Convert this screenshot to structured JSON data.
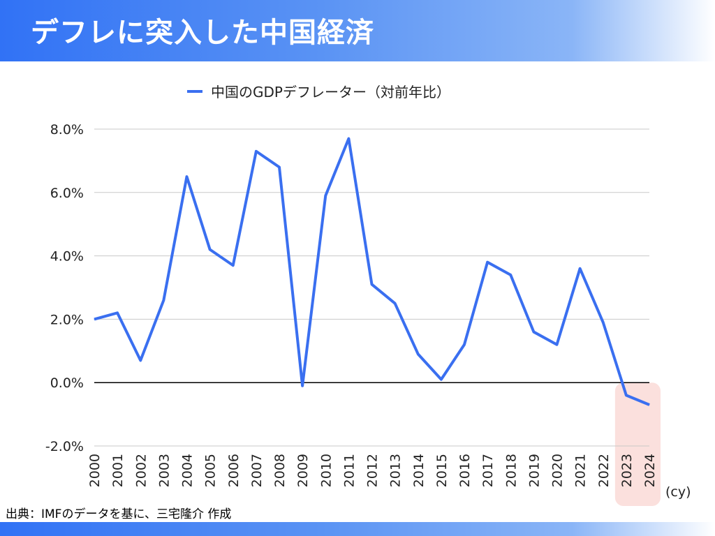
{
  "header": {
    "title": "デフレに突入した中国経済"
  },
  "footer": {
    "source": "出典：IMFのデータを基に、三宅隆介 作成"
  },
  "colors": {
    "line": "#3a6ff0",
    "highlight": "#fbe0dd",
    "accent": "#3172f5"
  },
  "chart_data": {
    "type": "line",
    "title": "",
    "legend": {
      "entries": [
        "中国のGDPデフレーター（対前年比）"
      ],
      "placement": "top-center"
    },
    "xlabel": "(cy)",
    "ylabel": "",
    "ylim": [
      -2,
      8
    ],
    "yticks": [
      -2,
      0,
      2,
      4,
      6,
      8
    ],
    "ytick_labels": [
      "-2.0%",
      "0.0%",
      "2.0%",
      "4.0%",
      "6.0%",
      "8.0%"
    ],
    "grid": true,
    "categories": [
      "2000",
      "2001",
      "2002",
      "2003",
      "2004",
      "2005",
      "2006",
      "2007",
      "2008",
      "2009",
      "2010",
      "2011",
      "2012",
      "2013",
      "2014",
      "2015",
      "2016",
      "2017",
      "2018",
      "2019",
      "2020",
      "2021",
      "2022",
      "2023",
      "2024"
    ],
    "series": [
      {
        "name": "中国のGDPデフレーター（対前年比）",
        "values": [
          2.0,
          2.2,
          0.7,
          2.6,
          6.5,
          4.2,
          3.7,
          7.3,
          6.8,
          -0.1,
          5.9,
          7.7,
          3.1,
          2.5,
          0.9,
          0.1,
          1.2,
          3.8,
          3.4,
          1.6,
          1.2,
          3.6,
          1.9,
          -0.4,
          -0.7
        ]
      }
    ],
    "highlight": {
      "categories": [
        "2023",
        "2024"
      ]
    }
  }
}
